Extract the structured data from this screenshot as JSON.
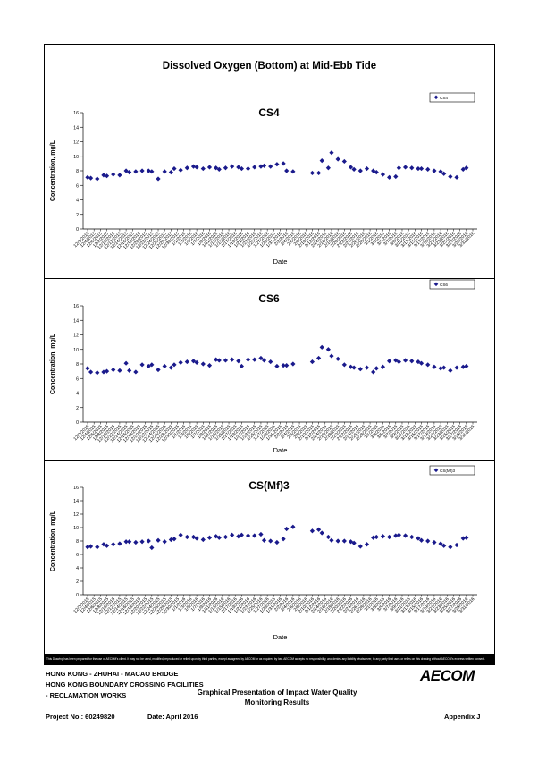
{
  "page": {
    "main_title": "Dissolved Oxygen (Bottom) at Mid-Ebb Tide",
    "disclaimer": "This Drawing has been prepared for the use of AECOM's client. It may not be used, modified, reproduced or relied upon by third parties, except as agreed by AECOM or as required by law. AECOM accepts no responsibility, and denies any liability whatsoever, to any party that uses or relies on this drawing without AECOM's express written consent.",
    "footer": {
      "line1": "HONG KONG - ZHUHAI - MACAO BRIDGE",
      "line2": "HONG KONG BOUNDARY CROSSING FACILITIES",
      "line3": "- RECLAMATION WORKS",
      "center1": "Graphical Presentation of Impact Water Quality",
      "center2": "Monitoring Results",
      "project": "Project No.: 60249820",
      "date": "Date: April 2016",
      "appendix": "Appendix J",
      "logo": "AECOM"
    }
  },
  "chart_data": [
    {
      "type": "scatter",
      "title": "CS4",
      "xlabel": "Date",
      "ylabel": "Concentration, mg/L",
      "ylim": [
        0,
        16
      ],
      "yticks": [
        0,
        2,
        4,
        6,
        8,
        10,
        12,
        14,
        16
      ],
      "legend": "top-right",
      "marker_color": "#1a1a8c",
      "xticks": [
        "12/2/2015",
        "12/4/2015",
        "12/6/2015",
        "12/8/2015",
        "12/10/2015",
        "12/12/2015",
        "12/14/2015",
        "12/16/2015",
        "12/18/2015",
        "12/20/2015",
        "12/22/2015",
        "12/24/2015",
        "12/26/2015",
        "12/28/2015",
        "12/30/2015",
        "1/1/2016",
        "1/3/2016",
        "1/5/2016",
        "1/7/2016",
        "1/9/2016",
        "1/11/2016",
        "1/13/2016",
        "1/15/2016",
        "1/17/2016",
        "1/19/2016",
        "1/21/2016",
        "1/23/2016",
        "1/25/2016",
        "1/27/2016",
        "1/29/2016",
        "1/31/2016",
        "2/2/2016",
        "2/4/2016",
        "2/6/2016",
        "2/8/2016",
        "2/10/2016",
        "2/12/2016",
        "2/14/2016",
        "2/16/2016",
        "2/18/2016",
        "2/20/2016",
        "2/22/2016",
        "2/24/2016",
        "2/26/2016",
        "2/28/2016",
        "3/1/2016",
        "3/3/2016",
        "3/5/2016",
        "3/7/2016",
        "3/9/2016",
        "3/11/2016",
        "3/13/2016",
        "3/15/2016",
        "3/17/2016",
        "3/19/2016",
        "3/21/2016",
        "3/23/2016",
        "3/25/2016",
        "3/27/2016",
        "3/29/2016",
        "3/31/2016"
      ],
      "series": [
        {
          "name": "CS4",
          "x": [
            "12/2/2015",
            "12/3/2015",
            "12/5/2015",
            "12/7/2015",
            "12/8/2015",
            "12/10/2015",
            "12/12/2015",
            "12/14/2015",
            "12/15/2015",
            "12/17/2015",
            "12/19/2015",
            "12/21/2015",
            "12/22/2015",
            "12/24/2015",
            "12/26/2015",
            "12/28/2015",
            "12/29/2015",
            "12/31/2015",
            "1/2/2016",
            "1/4/2016",
            "1/5/2016",
            "1/7/2016",
            "1/9/2016",
            "1/11/2016",
            "1/12/2016",
            "1/14/2016",
            "1/16/2016",
            "1/18/2016",
            "1/19/2016",
            "1/21/2016",
            "1/23/2016",
            "1/25/2016",
            "1/26/2016",
            "1/28/2016",
            "1/30/2016",
            "2/1/2016",
            "2/2/2016",
            "2/4/2016",
            "2/10/2016",
            "2/12/2016",
            "2/13/2016",
            "2/15/2016",
            "2/16/2016",
            "2/18/2016",
            "2/20/2016",
            "2/22/2016",
            "2/23/2016",
            "2/25/2016",
            "2/27/2016",
            "2/29/2016",
            "3/1/2016",
            "3/3/2016",
            "3/5/2016",
            "3/7/2016",
            "3/8/2016",
            "3/10/2016",
            "3/12/2016",
            "3/14/2016",
            "3/15/2016",
            "3/17/2016",
            "3/19/2016",
            "3/21/2016",
            "3/22/2016",
            "3/24/2016",
            "3/26/2016",
            "3/28/2016",
            "3/29/2016"
          ],
          "values": [
            7.1,
            7.0,
            6.9,
            7.4,
            7.3,
            7.5,
            7.4,
            8.0,
            7.8,
            7.9,
            8.0,
            8.0,
            7.9,
            6.9,
            7.9,
            7.8,
            8.3,
            8.1,
            8.4,
            8.6,
            8.5,
            8.3,
            8.5,
            8.4,
            8.2,
            8.4,
            8.6,
            8.5,
            8.3,
            8.3,
            8.5,
            8.6,
            8.7,
            8.6,
            8.9,
            9.0,
            8.0,
            7.9,
            7.7,
            7.7,
            9.4,
            8.4,
            10.5,
            9.6,
            9.3,
            8.5,
            8.2,
            8.0,
            8.3,
            8.0,
            7.8,
            7.5,
            7.1,
            7.2,
            8.4,
            8.5,
            8.4,
            8.3,
            8.3,
            8.2,
            8.0,
            7.9,
            7.6,
            7.2,
            7.1,
            8.2,
            8.4
          ]
        }
      ]
    },
    {
      "type": "scatter",
      "title": "CS6",
      "xlabel": "Date",
      "ylabel": "Concentration, mg/L",
      "ylim": [
        0,
        16
      ],
      "yticks": [
        0,
        2,
        4,
        6,
        8,
        10,
        12,
        14,
        16
      ],
      "legend": "top-right",
      "marker_color": "#1a1a8c",
      "xticks": [
        "12/2/2015",
        "12/4/2015",
        "12/6/2015",
        "12/8/2015",
        "12/10/2015",
        "12/12/2015",
        "12/14/2015",
        "12/16/2015",
        "12/18/2015",
        "12/20/2015",
        "12/22/2015",
        "12/24/2015",
        "12/26/2015",
        "12/28/2015",
        "12/30/2015",
        "1/1/2016",
        "1/3/2016",
        "1/5/2016",
        "1/7/2016",
        "1/9/2016",
        "1/11/2016",
        "1/13/2016",
        "1/15/2016",
        "1/17/2016",
        "1/19/2016",
        "1/21/2016",
        "1/23/2016",
        "1/25/2016",
        "1/27/2016",
        "1/29/2016",
        "1/31/2016",
        "2/2/2016",
        "2/4/2016",
        "2/6/2016",
        "2/8/2016",
        "2/10/2016",
        "2/12/2016",
        "2/14/2016",
        "2/16/2016",
        "2/18/2016",
        "2/20/2016",
        "2/22/2016",
        "2/24/2016",
        "2/26/2016",
        "2/28/2016",
        "3/1/2016",
        "3/3/2016",
        "3/5/2016",
        "3/7/2016",
        "3/9/2016",
        "3/11/2016",
        "3/13/2016",
        "3/15/2016",
        "3/17/2016",
        "3/19/2016",
        "3/21/2016",
        "3/23/2016",
        "3/25/2016",
        "3/27/2016",
        "3/29/2016",
        "3/31/2016"
      ],
      "series": [
        {
          "name": "CS6",
          "x": [
            "12/2/2015",
            "12/3/2015",
            "12/5/2015",
            "12/7/2015",
            "12/8/2015",
            "12/10/2015",
            "12/12/2015",
            "12/14/2015",
            "12/15/2015",
            "12/17/2015",
            "12/19/2015",
            "12/21/2015",
            "12/22/2015",
            "12/24/2015",
            "12/26/2015",
            "12/28/2015",
            "12/29/2015",
            "12/31/2015",
            "1/2/2016",
            "1/4/2016",
            "1/5/2016",
            "1/7/2016",
            "1/9/2016",
            "1/11/2016",
            "1/12/2016",
            "1/14/2016",
            "1/16/2016",
            "1/18/2016",
            "1/19/2016",
            "1/21/2016",
            "1/23/2016",
            "1/25/2016",
            "1/26/2016",
            "1/28/2016",
            "1/30/2016",
            "2/1/2016",
            "2/2/2016",
            "2/4/2016",
            "2/10/2016",
            "2/12/2016",
            "2/13/2016",
            "2/15/2016",
            "2/16/2016",
            "2/18/2016",
            "2/20/2016",
            "2/22/2016",
            "2/23/2016",
            "2/25/2016",
            "2/27/2016",
            "2/29/2016",
            "3/1/2016",
            "3/3/2016",
            "3/5/2016",
            "3/7/2016",
            "3/8/2016",
            "3/10/2016",
            "3/12/2016",
            "3/14/2016",
            "3/15/2016",
            "3/17/2016",
            "3/19/2016",
            "3/21/2016",
            "3/22/2016",
            "3/24/2016",
            "3/26/2016",
            "3/28/2016",
            "3/29/2016"
          ],
          "values": [
            7.4,
            6.9,
            6.8,
            6.9,
            7.0,
            7.2,
            7.1,
            8.1,
            7.1,
            6.9,
            7.9,
            7.7,
            7.9,
            7.2,
            7.7,
            7.5,
            7.9,
            8.2,
            8.3,
            8.4,
            8.2,
            8.0,
            7.8,
            8.6,
            8.5,
            8.5,
            8.6,
            8.4,
            7.7,
            8.6,
            8.6,
            8.8,
            8.5,
            8.3,
            7.7,
            7.8,
            7.8,
            8.0,
            8.3,
            8.8,
            10.3,
            10.0,
            9.1,
            8.7,
            7.9,
            7.6,
            7.5,
            7.3,
            7.5,
            6.9,
            7.4,
            7.6,
            8.4,
            8.5,
            8.3,
            8.5,
            8.4,
            8.3,
            8.1,
            7.9,
            7.6,
            7.4,
            7.5,
            7.1,
            7.5,
            7.6,
            7.7
          ]
        }
      ]
    },
    {
      "type": "scatter",
      "title": "CS(Mf)3",
      "xlabel": "Date",
      "ylabel": "Concentration, mg/L",
      "ylim": [
        0,
        16
      ],
      "yticks": [
        0,
        2,
        4,
        6,
        8,
        10,
        12,
        14,
        16
      ],
      "legend": "top-right",
      "marker_color": "#1a1a8c",
      "xticks": [
        "12/2/2015",
        "12/4/2015",
        "12/6/2015",
        "12/8/2015",
        "12/10/2015",
        "12/12/2015",
        "12/14/2015",
        "12/16/2015",
        "12/18/2015",
        "12/20/2015",
        "12/22/2015",
        "12/24/2015",
        "12/26/2015",
        "12/28/2015",
        "12/30/2015",
        "1/1/2016",
        "1/3/2016",
        "1/5/2016",
        "1/7/2016",
        "1/9/2016",
        "1/11/2016",
        "1/13/2016",
        "1/15/2016",
        "1/17/2016",
        "1/19/2016",
        "1/21/2016",
        "1/23/2016",
        "1/25/2016",
        "1/27/2016",
        "1/29/2016",
        "1/31/2016",
        "2/2/2016",
        "2/4/2016",
        "2/6/2016",
        "2/8/2016",
        "2/10/2016",
        "2/12/2016",
        "2/14/2016",
        "2/16/2016",
        "2/18/2016",
        "2/20/2016",
        "2/22/2016",
        "2/24/2016",
        "2/26/2016",
        "2/28/2016",
        "3/1/2016",
        "3/3/2016",
        "3/5/2016",
        "3/7/2016",
        "3/9/2016",
        "3/11/2016",
        "3/13/2016",
        "3/15/2016",
        "3/17/2016",
        "3/19/2016",
        "3/21/2016",
        "3/23/2016",
        "3/25/2016",
        "3/27/2016",
        "3/29/2016",
        "3/31/2016"
      ],
      "series": [
        {
          "name": "CS(Mf)3",
          "x": [
            "12/2/2015",
            "12/3/2015",
            "12/5/2015",
            "12/7/2015",
            "12/8/2015",
            "12/10/2015",
            "12/12/2015",
            "12/14/2015",
            "12/15/2015",
            "12/17/2015",
            "12/19/2015",
            "12/21/2015",
            "12/22/2015",
            "12/24/2015",
            "12/26/2015",
            "12/28/2015",
            "12/29/2015",
            "12/31/2015",
            "1/2/2016",
            "1/4/2016",
            "1/5/2016",
            "1/7/2016",
            "1/9/2016",
            "1/11/2016",
            "1/12/2016",
            "1/14/2016",
            "1/16/2016",
            "1/18/2016",
            "1/19/2016",
            "1/21/2016",
            "1/23/2016",
            "1/25/2016",
            "1/26/2016",
            "1/28/2016",
            "1/30/2016",
            "2/1/2016",
            "2/2/2016",
            "2/4/2016",
            "2/10/2016",
            "2/12/2016",
            "2/13/2016",
            "2/15/2016",
            "2/16/2016",
            "2/18/2016",
            "2/20/2016",
            "2/22/2016",
            "2/23/2016",
            "2/25/2016",
            "2/27/2016",
            "2/29/2016",
            "3/1/2016",
            "3/3/2016",
            "3/5/2016",
            "3/7/2016",
            "3/8/2016",
            "3/10/2016",
            "3/12/2016",
            "3/14/2016",
            "3/15/2016",
            "3/17/2016",
            "3/19/2016",
            "3/21/2016",
            "3/22/2016",
            "3/24/2016",
            "3/26/2016",
            "3/28/2016",
            "3/29/2016"
          ],
          "values": [
            7.1,
            7.2,
            7.1,
            7.5,
            7.3,
            7.5,
            7.6,
            7.9,
            7.9,
            7.8,
            7.9,
            8.0,
            7.0,
            8.1,
            7.9,
            8.2,
            8.3,
            8.9,
            8.6,
            8.6,
            8.4,
            8.2,
            8.5,
            8.7,
            8.5,
            8.6,
            8.9,
            8.7,
            8.9,
            8.8,
            8.8,
            9.0,
            8.1,
            8.0,
            7.8,
            8.3,
            9.8,
            10.1,
            9.5,
            9.7,
            9.2,
            8.6,
            8.1,
            8.0,
            8.0,
            7.9,
            7.7,
            7.2,
            7.5,
            8.5,
            8.6,
            8.7,
            8.6,
            8.8,
            8.9,
            8.8,
            8.6,
            8.4,
            8.1,
            8.0,
            7.8,
            7.6,
            7.3,
            7.1,
            7.4,
            8.4,
            8.5
          ]
        }
      ]
    }
  ]
}
